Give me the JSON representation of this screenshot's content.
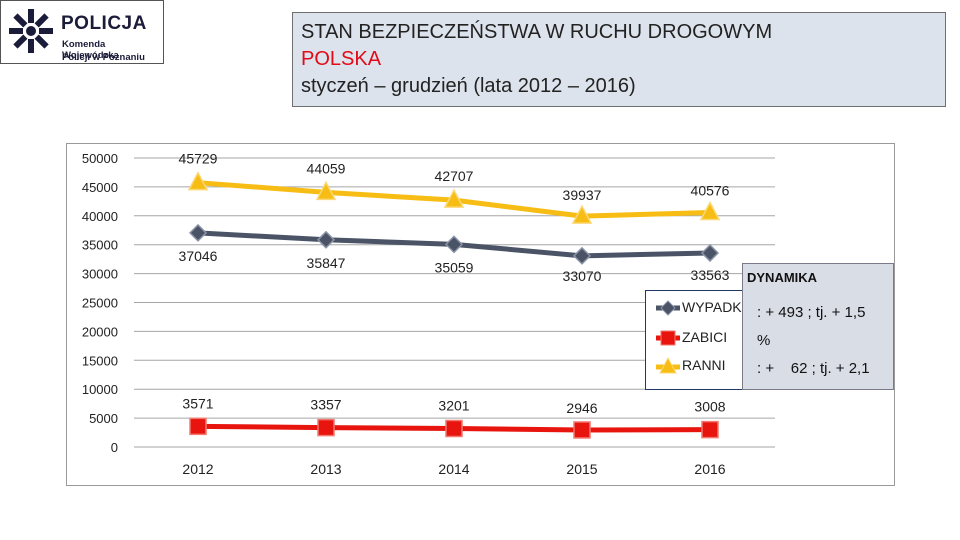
{
  "logo": {
    "name": "POLICJA",
    "line1": "Komenda Wojewódzka",
    "line2": "Policji w Poznaniu"
  },
  "header": {
    "line1": "STAN BEZPIECZEŃSTWA W RUCHU DROGOWYM",
    "line2": "POLSKA",
    "line3": "styczeń – grudzień (lata 2012 – 2016)"
  },
  "colors": {
    "wypadki": "#4a5466",
    "zabici": "#e8150e",
    "ranni": "#f7bd14",
    "title_accent": "#e30a17"
  },
  "chart_data": {
    "type": "line",
    "categories": [
      "2012",
      "2013",
      "2014",
      "2015",
      "2016"
    ],
    "ylim": [
      0,
      50000
    ],
    "yticks": [
      0,
      5000,
      10000,
      15000,
      20000,
      25000,
      30000,
      35000,
      40000,
      45000,
      50000
    ],
    "grid": true,
    "legend_position": "right",
    "series": [
      {
        "name": "WYPADKI",
        "values": [
          37046,
          35847,
          35059,
          33070,
          33563
        ],
        "marker": "diamond"
      },
      {
        "name": "ZABICI",
        "values": [
          3571,
          3357,
          3201,
          2946,
          3008
        ],
        "marker": "square"
      },
      {
        "name": "RANNI",
        "values": [
          45729,
          44059,
          42707,
          39937,
          40576
        ],
        "marker": "triangle"
      }
    ]
  },
  "dynamika": {
    "title": "DYNAMIKA",
    "lines": [
      ": + 493 ; tj. + 1,5",
      "%",
      ": +    62 ; tj. + 2,1"
    ]
  }
}
